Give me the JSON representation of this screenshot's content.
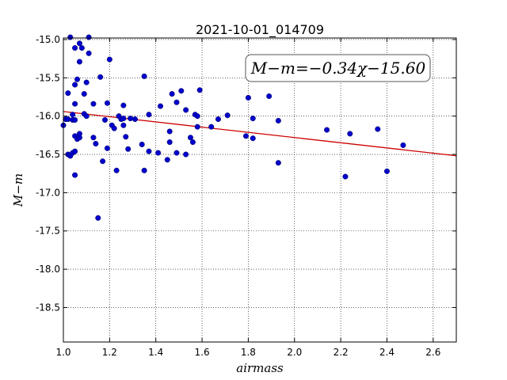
{
  "chart_data": {
    "type": "scatter",
    "title": "2021-10-01_014709",
    "xlabel": "airmass",
    "ylabel": "M−m",
    "annotation": "M−m=−0.34χ−15.60",
    "xlim": [
      1.0,
      2.7
    ],
    "ylim": [
      -18.95,
      -14.98
    ],
    "y_inverted": true,
    "grid": true,
    "xticks": [
      "1.0",
      "1.2",
      "1.4",
      "1.6",
      "1.8",
      "2.0",
      "2.2",
      "2.4",
      "2.6"
    ],
    "yticks": [
      "-15.0",
      "-15.5",
      "-16.0",
      "-16.5",
      "-17.0",
      "-17.5",
      "-18.0",
      "-18.5"
    ],
    "fit": {
      "slope": -0.34,
      "intercept": -15.6,
      "color": "#cc0000"
    },
    "point_color": "#0000cc",
    "points": [
      [
        1.0,
        -16.12
      ],
      [
        1.01,
        -16.04
      ],
      [
        1.02,
        -16.04
      ],
      [
        1.02,
        -16.5
      ],
      [
        1.02,
        -15.7
      ],
      [
        1.03,
        -14.97
      ],
      [
        1.03,
        -16.52
      ],
      [
        1.04,
        -16.48
      ],
      [
        1.04,
        -15.98
      ],
      [
        1.04,
        -16.05
      ],
      [
        1.05,
        -16.77
      ],
      [
        1.05,
        -16.46
      ],
      [
        1.05,
        -15.11
      ],
      [
        1.05,
        -15.59
      ],
      [
        1.05,
        -15.84
      ],
      [
        1.05,
        -16.26
      ],
      [
        1.05,
        -16.05
      ],
      [
        1.06,
        -16.3
      ],
      [
        1.06,
        -15.52
      ],
      [
        1.07,
        -15.05
      ],
      [
        1.07,
        -15.29
      ],
      [
        1.07,
        -16.28
      ],
      [
        1.07,
        -16.23
      ],
      [
        1.08,
        -15.11
      ],
      [
        1.09,
        -15.71
      ],
      [
        1.09,
        -15.97
      ],
      [
        1.1,
        -15.56
      ],
      [
        1.1,
        -16.0
      ],
      [
        1.11,
        -14.97
      ],
      [
        1.11,
        -15.18
      ],
      [
        1.13,
        -16.28
      ],
      [
        1.13,
        -15.84
      ],
      [
        1.14,
        -16.36
      ],
      [
        1.15,
        -17.33
      ],
      [
        1.16,
        -15.49
      ],
      [
        1.17,
        -16.59
      ],
      [
        1.18,
        -16.05
      ],
      [
        1.19,
        -15.83
      ],
      [
        1.19,
        -16.42
      ],
      [
        1.2,
        -15.26
      ],
      [
        1.21,
        -16.12
      ],
      [
        1.22,
        -16.16
      ],
      [
        1.23,
        -16.71
      ],
      [
        1.24,
        -16.0
      ],
      [
        1.25,
        -16.04
      ],
      [
        1.26,
        -15.86
      ],
      [
        1.26,
        -16.12
      ],
      [
        1.26,
        -16.03
      ],
      [
        1.27,
        -16.27
      ],
      [
        1.28,
        -16.43
      ],
      [
        1.29,
        -16.03
      ],
      [
        1.31,
        -16.04
      ],
      [
        1.34,
        -16.37
      ],
      [
        1.35,
        -16.71
      ],
      [
        1.35,
        -15.48
      ],
      [
        1.37,
        -16.46
      ],
      [
        1.37,
        -15.98
      ],
      [
        1.41,
        -16.48
      ],
      [
        1.42,
        -15.87
      ],
      [
        1.45,
        -16.57
      ],
      [
        1.46,
        -16.34
      ],
      [
        1.46,
        -16.2
      ],
      [
        1.47,
        -15.71
      ],
      [
        1.49,
        -15.82
      ],
      [
        1.49,
        -16.48
      ],
      [
        1.51,
        -15.67
      ],
      [
        1.53,
        -16.5
      ],
      [
        1.53,
        -15.92
      ],
      [
        1.55,
        -16.28
      ],
      [
        1.56,
        -16.34
      ],
      [
        1.57,
        -15.98
      ],
      [
        1.58,
        -16.0
      ],
      [
        1.58,
        -16.14
      ],
      [
        1.59,
        -15.66
      ],
      [
        1.64,
        -16.14
      ],
      [
        1.67,
        -16.04
      ],
      [
        1.71,
        -15.99
      ],
      [
        1.79,
        -16.26
      ],
      [
        1.8,
        -15.76
      ],
      [
        1.82,
        -16.29
      ],
      [
        1.82,
        -16.03
      ],
      [
        1.89,
        -15.74
      ],
      [
        1.93,
        -16.06
      ],
      [
        1.93,
        -16.61
      ],
      [
        2.14,
        -16.18
      ],
      [
        2.22,
        -16.79
      ],
      [
        2.24,
        -16.23
      ],
      [
        2.36,
        -16.17
      ],
      [
        2.4,
        -16.72
      ],
      [
        2.47,
        -16.38
      ]
    ]
  }
}
